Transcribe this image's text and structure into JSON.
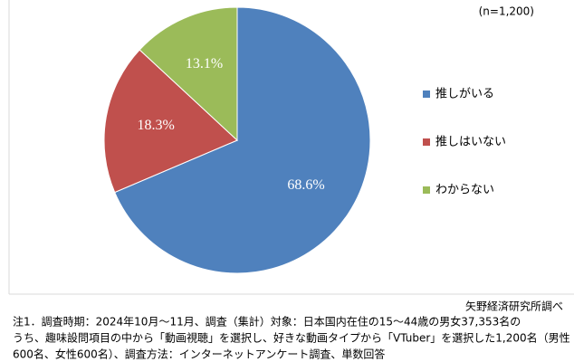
{
  "chart_data": {
    "type": "pie",
    "categories": [
      "推しがいる",
      "推しはいない",
      "わからない"
    ],
    "values": [
      68.6,
      18.3,
      13.1
    ],
    "value_labels": [
      "68.6%",
      "18.3%",
      "13.1%"
    ],
    "colors": [
      "#4f81bd",
      "#c0504d",
      "#9bbb59"
    ],
    "legend": "right",
    "annotations": {
      "sample": "(n=1,200)",
      "source": "矢野経済研究所調べ"
    },
    "note": [
      "注1．調査時期：2024年10月～11月、調査（集計）対象：日本国内在住の15～44歳の男女37,353名の",
      "うち、趣味設問項目の中から「動画視聴」を選択し、好きな動画タイプから「VTuber」を選択した1,200名（男性",
      "600名、女性600名）、調査方法：インターネットアンケート調査、単数回答"
    ]
  }
}
